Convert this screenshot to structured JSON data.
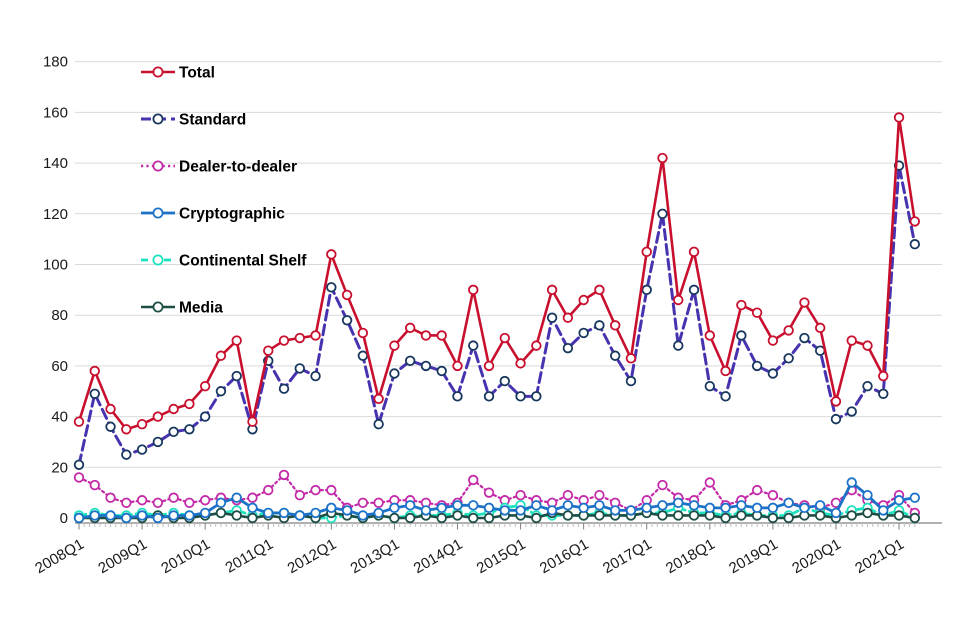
{
  "chart": {
    "y_axis": {
      "tick_labels": [
        "0",
        "20",
        "40",
        "60",
        "80",
        "100",
        "120",
        "140",
        "160",
        "180"
      ],
      "min": 0,
      "max": 180,
      "step": 20
    },
    "x_axis": {
      "tick_labels": [
        "2008Q1",
        "2009Q1",
        "2010Q1",
        "2011Q1",
        "2012Q1",
        "2013Q1",
        "2014Q1",
        "2015Q1",
        "2016Q1",
        "2017Q1",
        "2018Q1",
        "2019Q1",
        "2020Q1",
        "2021Q1"
      ],
      "label_every_n_points": 4
    },
    "colors": {
      "gridline": "#d9d9d9",
      "axis_line": "#808080",
      "minor_tick": "#bfbfbf",
      "year_tick": "#808080",
      "tick_label": "#1a1a1a",
      "legend_label": "#000000",
      "marker_fill": "#ffffff"
    }
  },
  "chart_data": {
    "type": "line",
    "title": "",
    "xlabel": "",
    "ylabel": "",
    "ylim": [
      0,
      180
    ],
    "grid": true,
    "legend_position": "upper-left-inside",
    "quarters": [
      "2008Q1",
      "2008Q2",
      "2008Q3",
      "2008Q4",
      "2009Q1",
      "2009Q2",
      "2009Q3",
      "2009Q4",
      "2010Q1",
      "2010Q2",
      "2010Q3",
      "2010Q4",
      "2011Q1",
      "2011Q2",
      "2011Q3",
      "2011Q4",
      "2012Q1",
      "2012Q2",
      "2012Q3",
      "2012Q4",
      "2013Q1",
      "2013Q2",
      "2013Q3",
      "2013Q4",
      "2014Q1",
      "2014Q2",
      "2014Q3",
      "2014Q4",
      "2015Q1",
      "2015Q2",
      "2015Q3",
      "2015Q4",
      "2016Q1",
      "2016Q2",
      "2016Q3",
      "2016Q4",
      "2017Q1",
      "2017Q2",
      "2017Q3",
      "2017Q4",
      "2018Q1",
      "2018Q2",
      "2018Q3",
      "2018Q4",
      "2019Q1",
      "2019Q2",
      "2019Q3",
      "2019Q4",
      "2020Q1",
      "2020Q2",
      "2020Q3",
      "2020Q4",
      "2021Q1",
      "2021Q2"
    ],
    "series": [
      {
        "name": "Dealer-to-dealer",
        "color": "#c32aa8",
        "marker_color": "#c32aa8",
        "dash": "2.2,3.2",
        "line_width": 2.2,
        "values": [
          16,
          13,
          8,
          6,
          7,
          6,
          8,
          6,
          7,
          8,
          7,
          8,
          11,
          17,
          9,
          11,
          11,
          4,
          6,
          6,
          7,
          7,
          6,
          5,
          6,
          15,
          10,
          7,
          9,
          7,
          6,
          9,
          7,
          9,
          6,
          3,
          7,
          13,
          8,
          7,
          14,
          5,
          7,
          11,
          9,
          6,
          5,
          4,
          6,
          11,
          7,
          5,
          9,
          2
        ]
      },
      {
        "name": "Continental Shelf",
        "color": "#1de2c0",
        "marker_color": "#1de2c0",
        "dash": "7,4.5",
        "line_width": 2.8,
        "values": [
          1,
          2,
          1,
          1,
          2,
          1,
          2,
          1,
          1,
          2,
          3,
          1,
          2,
          2,
          1,
          0,
          0,
          1,
          0,
          1,
          0,
          1,
          1,
          1,
          2,
          1,
          2,
          4,
          5,
          1,
          1,
          1,
          1,
          2,
          1,
          1,
          2,
          2,
          4,
          2,
          2,
          1,
          2,
          1,
          1,
          1,
          4,
          2,
          1,
          3,
          4,
          1,
          3,
          0
        ]
      },
      {
        "name": "Media",
        "color": "#1e4d45",
        "marker_color": "#1e4d45",
        "dash": "",
        "line_width": 2.6,
        "values": [
          0,
          0,
          0,
          0,
          0,
          1,
          0,
          0,
          1,
          2,
          1,
          0,
          1,
          0,
          1,
          0,
          2,
          1,
          0,
          1,
          0,
          0,
          1,
          0,
          1,
          0,
          0,
          1,
          1,
          0,
          2,
          1,
          1,
          1,
          1,
          1,
          2,
          1,
          1,
          1,
          1,
          0,
          1,
          1,
          0,
          0,
          1,
          1,
          0,
          1,
          2,
          1,
          1,
          0
        ]
      },
      {
        "name": "Cryptographic",
        "color": "#1b72c8",
        "marker_color": "#1b72c8",
        "dash": "",
        "line_width": 2.8,
        "values": [
          0,
          1,
          1,
          0,
          1,
          0,
          1,
          1,
          2,
          6,
          8,
          4,
          2,
          2,
          1,
          2,
          4,
          3,
          1,
          2,
          4,
          5,
          3,
          4,
          5,
          5,
          4,
          3,
          3,
          5,
          3,
          5,
          4,
          5,
          3,
          3,
          4,
          5,
          6,
          5,
          4,
          4,
          5,
          4,
          4,
          6,
          4,
          5,
          2,
          14,
          9,
          3,
          7,
          8
        ]
      },
      {
        "name": "Standard",
        "color": "#4733b0",
        "marker_color": "#17375e",
        "dash": "10,5",
        "line_width": 3,
        "values": [
          21,
          49,
          36,
          25,
          27,
          30,
          34,
          35,
          40,
          50,
          56,
          35,
          62,
          51,
          59,
          56,
          91,
          78,
          64,
          37,
          57,
          62,
          60,
          58,
          48,
          68,
          48,
          54,
          48,
          48,
          79,
          67,
          73,
          76,
          64,
          54,
          90,
          120,
          68,
          90,
          52,
          48,
          72,
          60,
          57,
          63,
          71,
          66,
          39,
          42,
          52,
          49,
          139,
          108
        ]
      },
      {
        "name": "Total",
        "color": "#c8102e",
        "marker_color": "#c8102e",
        "dash": "",
        "line_width": 2.6,
        "values": [
          38,
          58,
          43,
          35,
          37,
          40,
          43,
          45,
          52,
          64,
          70,
          38,
          66,
          70,
          71,
          72,
          104,
          88,
          73,
          47,
          68,
          75,
          72,
          72,
          60,
          90,
          60,
          71,
          61,
          68,
          90,
          79,
          86,
          90,
          76,
          63,
          105,
          142,
          86,
          105,
          72,
          58,
          84,
          81,
          70,
          74,
          85,
          75,
          46,
          70,
          68,
          56,
          158,
          117
        ]
      }
    ],
    "legend_order": [
      "Total",
      "Standard",
      "Dealer-to-dealer",
      "Cryptographic",
      "Continental Shelf",
      "Media"
    ]
  }
}
